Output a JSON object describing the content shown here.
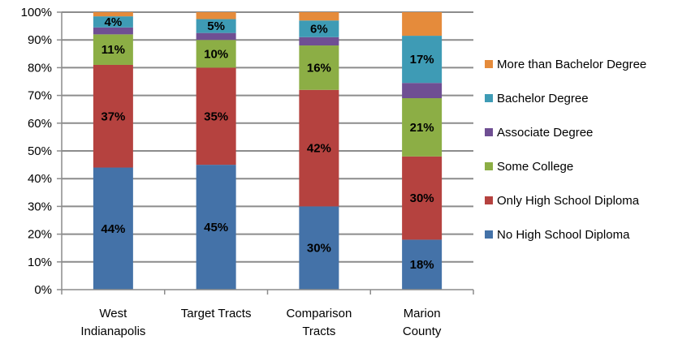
{
  "chart_data": {
    "type": "bar",
    "stacked": true,
    "percent": true,
    "categories": [
      [
        "West",
        "Indianapolis"
      ],
      [
        "Target Tracts"
      ],
      [
        "Comparison",
        "Tracts"
      ],
      [
        "Marion",
        "County"
      ]
    ],
    "series": [
      {
        "name": "No High School Diploma",
        "color": "#4472A8",
        "values": [
          44,
          45,
          30,
          18
        ],
        "labels": [
          "44%",
          "45%",
          "30%",
          "18%"
        ]
      },
      {
        "name": "Only High School Diploma",
        "color": "#B5423F",
        "values": [
          37,
          35,
          42,
          30
        ],
        "labels": [
          "37%",
          "35%",
          "42%",
          "30%"
        ]
      },
      {
        "name": "Some College",
        "color": "#8CAE45",
        "values": [
          11,
          10,
          16,
          21
        ],
        "labels": [
          "11%",
          "10%",
          "16%",
          "21%"
        ]
      },
      {
        "name": "Associate Degree",
        "color": "#6F4F93",
        "values": [
          2.5,
          2.5,
          3,
          5.5
        ],
        "labels": [
          "",
          "",
          "",
          ""
        ]
      },
      {
        "name": "Bachelor Degree",
        "color": "#3E9BB5",
        "values": [
          4,
          5,
          6,
          17
        ],
        "labels": [
          "4%",
          "5%",
          "6%",
          "17%"
        ]
      },
      {
        "name": "More than Bachelor Degree",
        "color": "#E58B3B",
        "values": [
          1.5,
          2.5,
          3,
          8.5
        ],
        "labels": [
          "",
          "",
          "",
          ""
        ]
      }
    ],
    "yticks": [
      "0%",
      "10%",
      "20%",
      "30%",
      "40%",
      "50%",
      "60%",
      "70%",
      "80%",
      "90%",
      "100%"
    ],
    "ylim": [
      0,
      100
    ],
    "grid": true,
    "legend_position": "right",
    "legend_order": [
      5,
      4,
      3,
      2,
      1,
      0
    ]
  }
}
